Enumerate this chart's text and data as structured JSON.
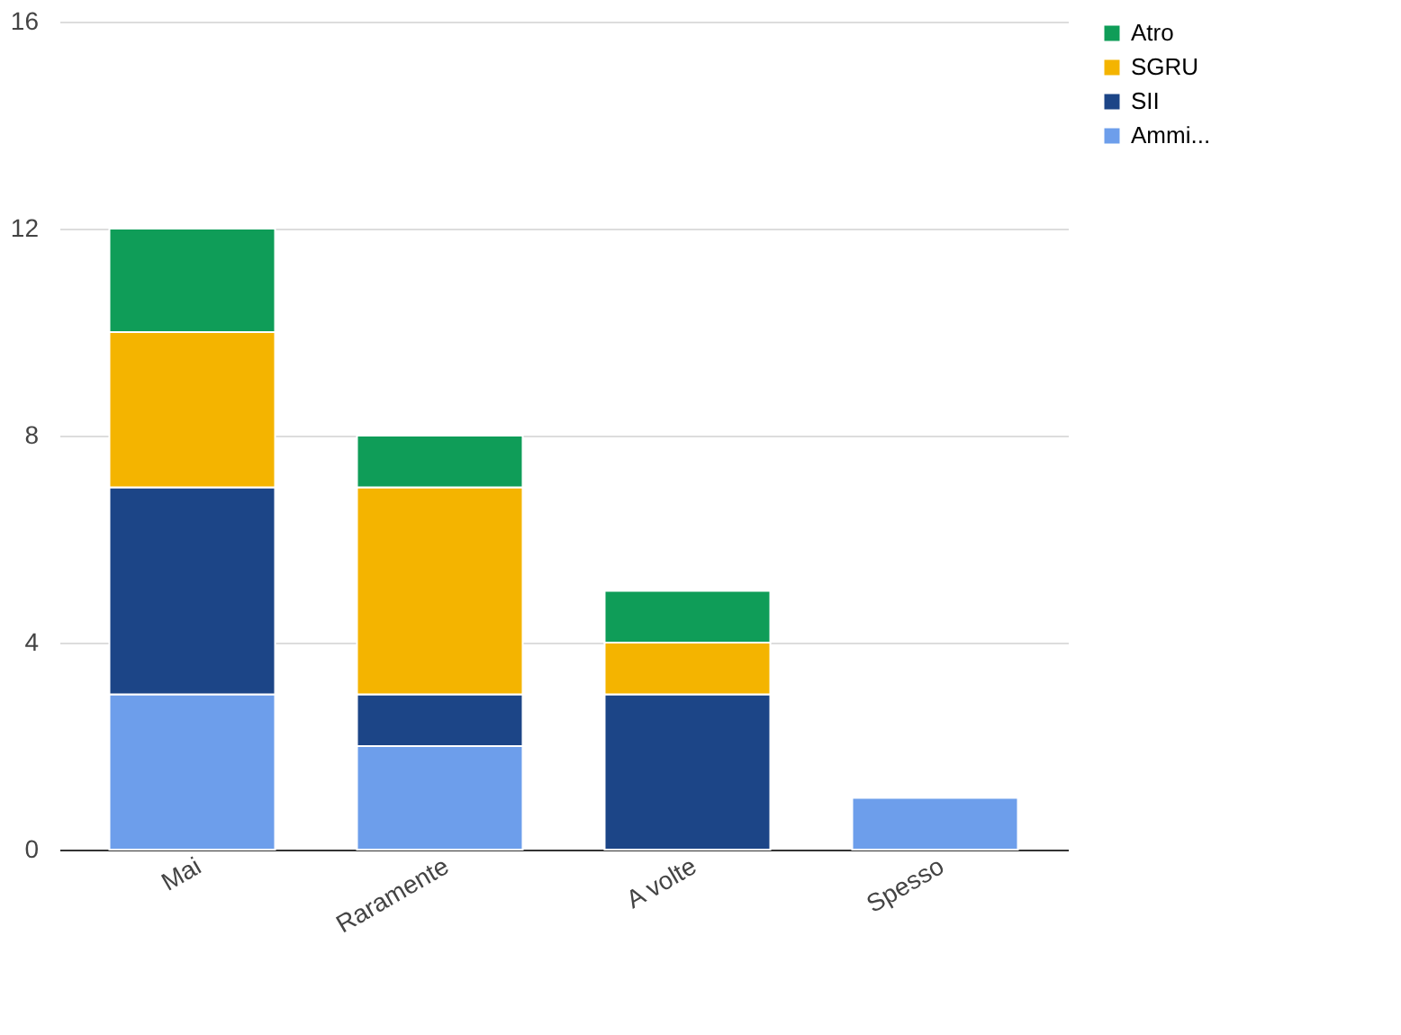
{
  "chart_data": {
    "type": "bar",
    "stacked": true,
    "categories": [
      "Mai",
      "Raramente",
      "A volte",
      "Spesso"
    ],
    "series": [
      {
        "name": "Ammi...",
        "color": "#6d9eeb",
        "values": [
          3,
          2,
          null,
          1
        ]
      },
      {
        "name": "SII",
        "color": "#1c4587",
        "values": [
          4,
          1,
          3,
          null
        ]
      },
      {
        "name": "SGRU",
        "color": "#f4b400",
        "values": [
          3,
          4,
          1,
          null
        ]
      },
      {
        "name": "Atro",
        "color": "#0f9d58",
        "values": [
          2,
          1,
          1,
          null
        ]
      }
    ],
    "ylim": [
      0,
      16
    ],
    "yticks": [
      0,
      4,
      8,
      12,
      16
    ],
    "grid": "y",
    "legend": "top right"
  }
}
